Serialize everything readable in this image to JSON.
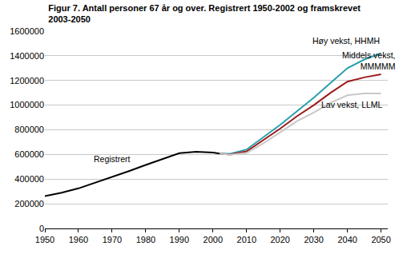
{
  "chart_data": {
    "type": "line",
    "title": [
      "Figur 7. Antall personer 67 år og over. Registrert 1950-2002 og framskrevet",
      "2003-2050"
    ],
    "series": [
      {
        "name": "Registrert",
        "color": "#000000",
        "x": [
          1950,
          1955,
          1960,
          1965,
          1970,
          1975,
          1980,
          1985,
          1990,
          1995,
          2000,
          2002
        ],
        "values": [
          262000,
          290000,
          325000,
          370000,
          420000,
          465000,
          515000,
          565000,
          610000,
          622000,
          615000,
          607000
        ]
      },
      {
        "name": "Høy vekst, HHMH",
        "color": "#2a9fad",
        "x": [
          2002,
          2005,
          2010,
          2015,
          2020,
          2025,
          2030,
          2035,
          2040,
          2045,
          2050
        ],
        "values": [
          607000,
          605000,
          640000,
          740000,
          840000,
          950000,
          1060000,
          1180000,
          1300000,
          1370000,
          1420000
        ]
      },
      {
        "name": "Middels vekst, MMMMM",
        "color": "#9b1b1b",
        "x": [
          2002,
          2005,
          2010,
          2015,
          2020,
          2025,
          2030,
          2035,
          2040,
          2045,
          2050
        ],
        "values": [
          607000,
          600000,
          625000,
          715000,
          810000,
          910000,
          1000000,
          1100000,
          1190000,
          1225000,
          1250000
        ]
      },
      {
        "name": "Lav vekst, LLML",
        "color": "#c8c8c8",
        "x": [
          2002,
          2005,
          2010,
          2015,
          2020,
          2025,
          2030,
          2035,
          2040,
          2045,
          2050
        ],
        "values": [
          607000,
          597000,
          612000,
          690000,
          780000,
          870000,
          940000,
          1020000,
          1080000,
          1095000,
          1095000
        ]
      }
    ],
    "annotations": [
      {
        "lines": [
          "Registrert"
        ]
      },
      {
        "lines": [
          "Høy vekst, HHMH"
        ]
      },
      {
        "lines": [
          "Middels vekst,",
          "MMMMM"
        ]
      },
      {
        "lines": [
          "Lav vekst, LLML"
        ]
      }
    ],
    "xlim": [
      1950,
      2052
    ],
    "xticks": [
      1950,
      1960,
      1970,
      1980,
      1990,
      2000,
      2010,
      2020,
      2030,
      2040,
      2050
    ],
    "ylim": [
      0,
      1600000
    ],
    "yticks": [
      0,
      200000,
      400000,
      600000,
      800000,
      1000000,
      1200000,
      1400000,
      1600000
    ],
    "grid": "y"
  }
}
